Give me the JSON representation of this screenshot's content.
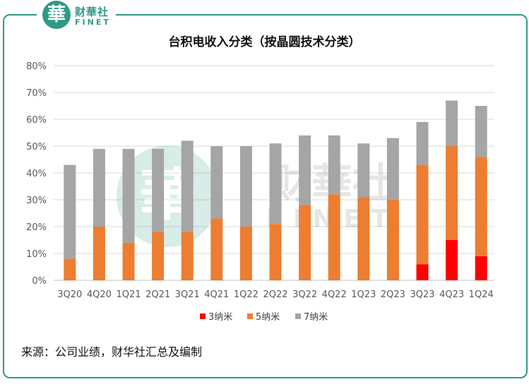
{
  "brand": {
    "logo_char": "華",
    "name_cn": "财華社",
    "name_en": "FINET",
    "color": "#2e9a86"
  },
  "source_note": "来源：公司业绩，财华社汇总及编制",
  "chart_data": {
    "type": "bar",
    "stacked": true,
    "title": "台积电收入分类（按晶圆技术分类）",
    "categories": [
      "3Q20",
      "4Q20",
      "1Q21",
      "2Q21",
      "3Q21",
      "4Q21",
      "1Q22",
      "2Q22",
      "3Q22",
      "4Q22",
      "1Q23",
      "2Q23",
      "3Q23",
      "4Q23",
      "1Q24"
    ],
    "series": [
      {
        "name": "3纳米",
        "color": "#ff0000",
        "values": [
          0,
          0,
          0,
          0,
          0,
          0,
          0,
          0,
          0,
          0,
          0,
          0,
          6,
          15,
          9
        ]
      },
      {
        "name": "5纳米",
        "color": "#ed7d31",
        "values": [
          8,
          20,
          14,
          18,
          18,
          23,
          20,
          21,
          28,
          32,
          31,
          30,
          37,
          35,
          37
        ]
      },
      {
        "name": "7纳米",
        "color": "#a5a5a5",
        "values": [
          35,
          29,
          35,
          31,
          34,
          27,
          30,
          30,
          26,
          22,
          20,
          23,
          16,
          17,
          19
        ]
      }
    ],
    "y_ticks": [
      "0%",
      "10%",
      "20%",
      "30%",
      "40%",
      "50%",
      "60%",
      "70%",
      "80%"
    ],
    "ylim": [
      0,
      80
    ],
    "grid": true,
    "legend_position": "bottom"
  }
}
